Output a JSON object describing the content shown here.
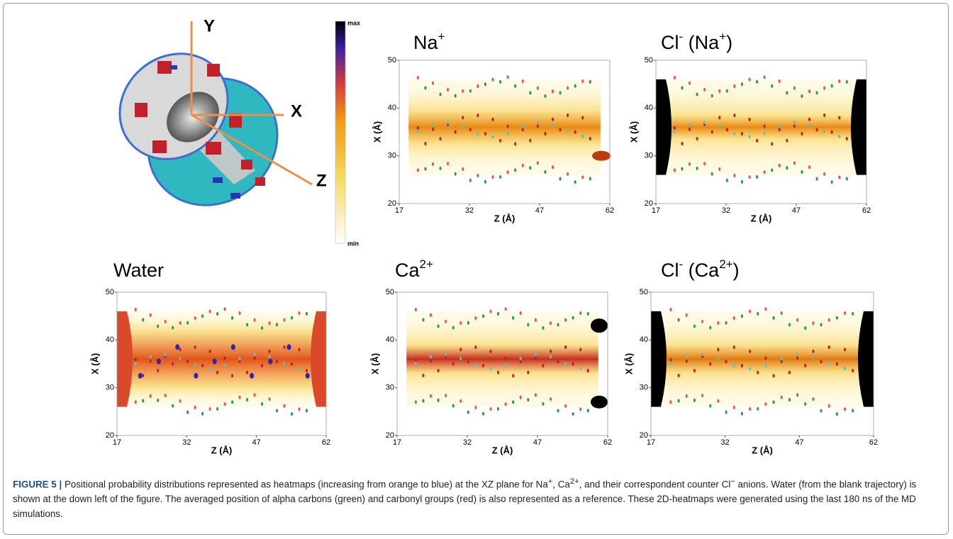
{
  "figure": {
    "schematic_axes": {
      "y": "Y",
      "x": "X",
      "z": "Z"
    },
    "colorbar": {
      "max": "max",
      "min": "min"
    },
    "axes": {
      "xlabel": "Z (Å)",
      "ylabel": "X (Å)",
      "xlim": [
        17,
        62
      ],
      "ylim": [
        20,
        50
      ],
      "xticks": [
        17,
        32,
        47,
        62
      ],
      "yticks": [
        20,
        30,
        40,
        50
      ]
    },
    "panels": [
      {
        "title_parts": [
          "Na",
          "+"
        ]
      },
      {
        "title_parts": [
          "Cl",
          "-",
          " (Na",
          "+",
          ")"
        ]
      },
      {
        "title_parts": [
          "Water"
        ]
      },
      {
        "title_parts": [
          "Ca",
          "2+"
        ]
      },
      {
        "title_parts": [
          "Cl",
          "-",
          " (Ca",
          "2+",
          ")"
        ]
      }
    ]
  },
  "caption": {
    "label": "FIGURE 5 |",
    "parts": [
      "Positional probability distributions represented as heatmaps (increasing from orange to blue) at the XZ plane for Na",
      "+",
      ", Ca",
      "2+",
      ", and their correspondent counter Cl",
      "−",
      " anions. Water (from the blank trajectory) is shown at the down left of the figure. The averaged position of alpha carbons (green) and carbonyl groups (red) is also represented as a reference. These 2D-heatmaps were generated using the last 180 ns of the MD simulations."
    ]
  }
}
